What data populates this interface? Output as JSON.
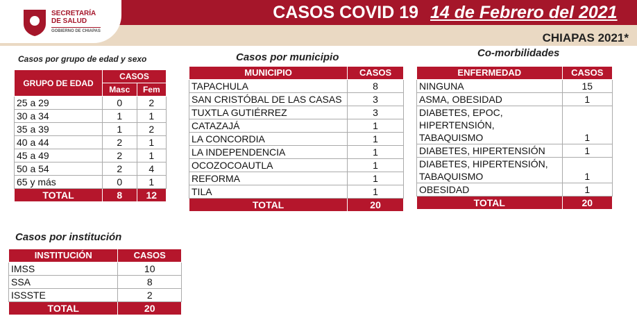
{
  "header": {
    "logo_line1": "SECRETARÍA",
    "logo_line2": "DE SALUD",
    "logo_line3": "GOBIERNO DE CHIAPAS",
    "title": "CASOS COVID 19",
    "date": "14 de Febrero del 2021",
    "region": "CHIAPAS 2021*"
  },
  "age_table": {
    "title": "Casos por grupo de edad y sexo",
    "headers": {
      "group": "GRUPO DE EDAD",
      "cases": "CASOS",
      "male": "Masc",
      "female": "Fem"
    },
    "rows": [
      [
        "25 a 29",
        0,
        2
      ],
      [
        "30 a 34",
        1,
        1
      ],
      [
        "35 a 39",
        1,
        2
      ],
      [
        "40 a 44",
        2,
        1
      ],
      [
        "45 a 49",
        2,
        1
      ],
      [
        "50 a 54",
        2,
        4
      ],
      [
        "65 y más",
        0,
        1
      ]
    ],
    "total": [
      "TOTAL",
      8,
      12
    ]
  },
  "municipality_table": {
    "title": "Casos por municipio",
    "headers": [
      "MUNICIPIO",
      "CASOS"
    ],
    "rows": [
      [
        "TAPACHULA",
        8
      ],
      [
        "SAN CRISTÓBAL DE LAS CASAS",
        3
      ],
      [
        "TUXTLA GUTIÉRREZ",
        3
      ],
      [
        "CATAZAJÁ",
        1
      ],
      [
        "LA CONCORDIA",
        1
      ],
      [
        "LA INDEPENDENCIA",
        1
      ],
      [
        "OCOZOCOAUTLA",
        1
      ],
      [
        "REFORMA",
        1
      ],
      [
        "TILA",
        1
      ]
    ],
    "total": [
      "TOTAL",
      20
    ]
  },
  "comorbidity_table": {
    "title": "Co-morbilidades",
    "headers": [
      "ENFERMEDAD",
      "CASOS"
    ],
    "rows": [
      [
        "NINGUNA",
        15
      ],
      [
        "ASMA, OBESIDAD",
        1
      ],
      [
        "DIABETES, EPOC, HIPERTENSIÓN, TABAQUISMO",
        1
      ],
      [
        "DIABETES, HIPERTENSIÓN",
        1
      ],
      [
        "DIABETES, HIPERTENSIÓN, TABAQUISMO",
        1
      ],
      [
        "OBESIDAD",
        1
      ]
    ],
    "total": [
      "TOTAL",
      20
    ]
  },
  "institution_table": {
    "title": "Casos por institución",
    "headers": [
      "INSTITUCIÓN",
      "CASOS"
    ],
    "rows": [
      [
        "IMSS",
        10
      ],
      [
        "SSA",
        8
      ],
      [
        "ISSSTE",
        2
      ]
    ],
    "total": [
      "TOTAL",
      20
    ]
  }
}
